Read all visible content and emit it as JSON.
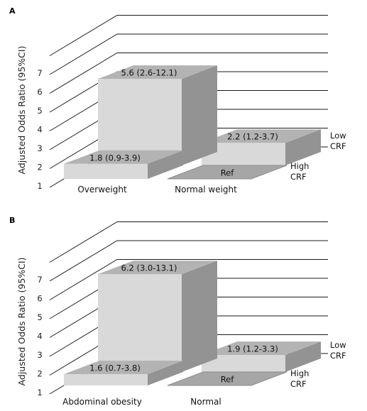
{
  "chart_data": [
    {
      "panel": "A",
      "type": "bar",
      "ylabel": "Adjusted Odds Ratio (95%CI)",
      "ylim": [
        1,
        8
      ],
      "yticks": [
        "1",
        "2",
        "3",
        "4",
        "5",
        "6",
        "7"
      ],
      "categories": [
        "Overweight",
        "Normal weight"
      ],
      "series": [
        {
          "name_lines": [
            "High",
            "CRF"
          ],
          "values": [
            1.8,
            1.0
          ],
          "labels": [
            "1.8 (0.9-3.9)",
            "Ref"
          ]
        },
        {
          "name_lines": [
            "Low",
            "CRF"
          ],
          "values": [
            5.6,
            2.2
          ],
          "labels": [
            "5.6 (2.6-12.1)",
            "2.2 (1.2-3.7)"
          ]
        }
      ]
    },
    {
      "panel": "B",
      "type": "bar",
      "ylabel": "Adjusted Odds Ratio (95%CI)",
      "ylim": [
        1,
        8
      ],
      "yticks": [
        "1",
        "2",
        "3",
        "4",
        "5",
        "6",
        "7"
      ],
      "categories": [
        "Abdominal obesity",
        "Normal"
      ],
      "series": [
        {
          "name_lines": [
            "High",
            "CRF"
          ],
          "values": [
            1.6,
            1.0
          ],
          "labels": [
            "1.6 (0.7-3.8)",
            "Ref"
          ]
        },
        {
          "name_lines": [
            "Low",
            "CRF"
          ],
          "values": [
            6.2,
            1.9
          ],
          "labels": [
            "6.2 (3.0-13.1)",
            "1.9 (1.2-3.3)"
          ]
        }
      ]
    }
  ],
  "colors": {
    "front": "#d9d9d9",
    "top": "#b3b3b3",
    "side": "#939393",
    "ref_floor": "#a6a6a6",
    "grid": "#1a1a1a"
  }
}
